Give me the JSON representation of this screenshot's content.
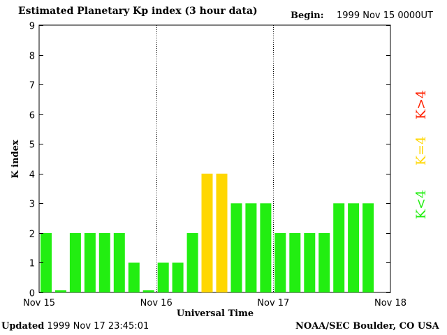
{
  "header": {
    "title": "Estimated Planetary Kp index (3 hour data)",
    "begin_label": "Begin:",
    "begin_value": "1999 Nov 15 0000UT"
  },
  "footer": {
    "updated_label": "Updated",
    "updated_value": "1999 Nov 17 23:45:01",
    "source": "NOAA/SEC Boulder, CO USA"
  },
  "colors": {
    "low": "#22ee11",
    "equal": "#ffd700",
    "high": "#ff2200"
  },
  "chart_data": {
    "type": "bar",
    "title": "Estimated Planetary Kp index (3 hour data)",
    "xlabel": "Universal Time",
    "ylabel": "K index",
    "ylim": [
      0,
      9
    ],
    "yticks": [
      "0",
      "1",
      "2",
      "3",
      "4",
      "5",
      "6",
      "7",
      "8",
      "9"
    ],
    "x_tick_labels": [
      "Nov 15",
      "Nov 16",
      "Nov 17",
      "Nov 18"
    ],
    "values": [
      2,
      0,
      2,
      2,
      2,
      2,
      1,
      0,
      1,
      1,
      2,
      4,
      4,
      3,
      3,
      3,
      2,
      2,
      2,
      2,
      3,
      3,
      3
    ],
    "grid": "vertical dotted lines at day boundaries",
    "legend": {
      "position": "right",
      "entries": [
        {
          "label": "K<4",
          "color": "#22ee11"
        },
        {
          "label": "K=4",
          "color": "#ffd700"
        },
        {
          "label": "K>4",
          "color": "#ff2200"
        }
      ]
    }
  }
}
